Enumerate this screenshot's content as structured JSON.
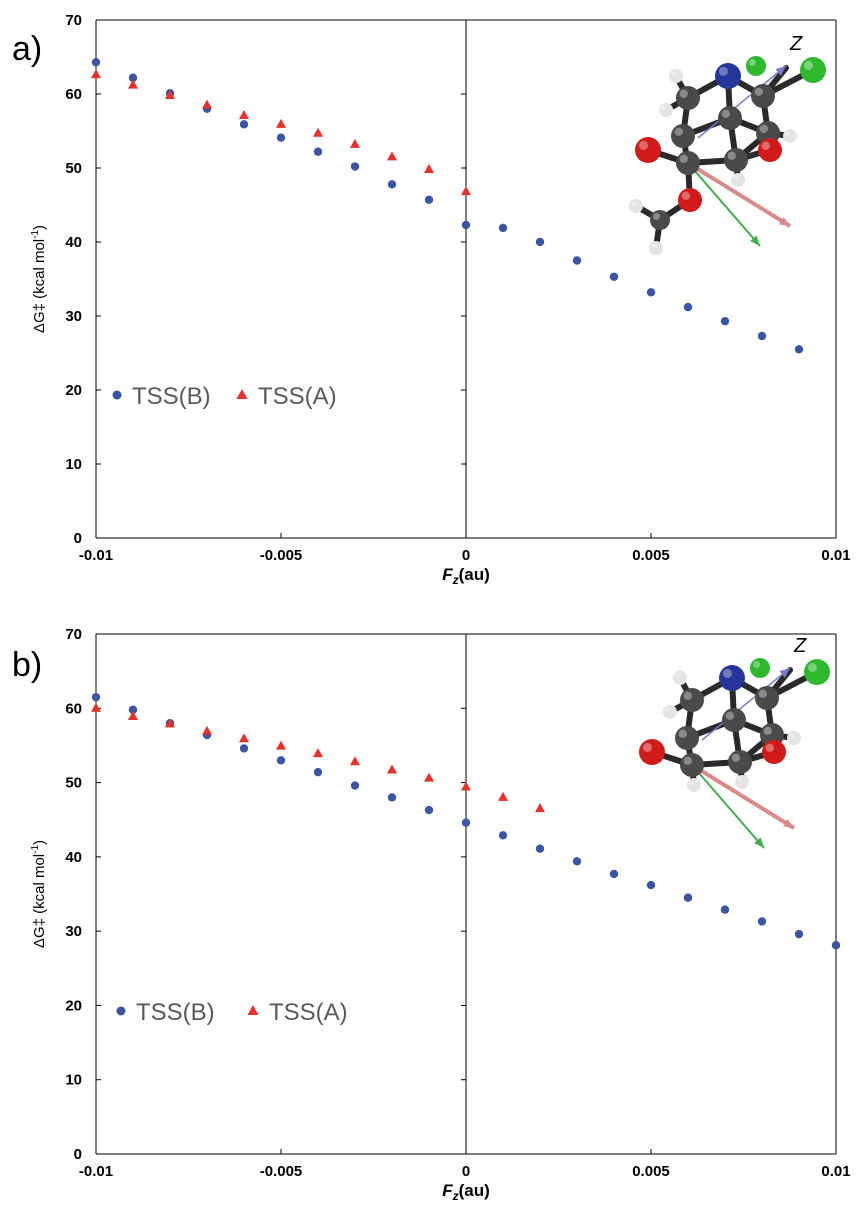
{
  "chart_data": [
    {
      "type": "scatter",
      "panel_label": "a)",
      "xlabel": {
        "main": "F",
        "sub": "z",
        "unit": "(au)"
      },
      "ylabel": {
        "main": "ΔG‡ (kcal mol",
        "sup": "-1",
        "end": ")"
      },
      "xlim": [
        -0.01,
        0.01
      ],
      "ylim": [
        0,
        70
      ],
      "xticks": [
        "-0.01",
        "-0.005",
        "0",
        "0.005",
        "0.01"
      ],
      "yticks": [
        "0",
        "10",
        "20",
        "30",
        "40",
        "50",
        "60",
        "70"
      ],
      "grid": false,
      "legend": "left",
      "series": [
        {
          "name": "TSS(B)",
          "marker": "circle",
          "color": "#3a55a4",
          "points": [
            [
              -0.01,
              64.3
            ],
            [
              -0.009,
              62.2
            ],
            [
              -0.008,
              60.1
            ],
            [
              -0.007,
              58.0
            ],
            [
              -0.006,
              55.9
            ],
            [
              -0.005,
              54.1
            ],
            [
              -0.004,
              52.2
            ],
            [
              -0.003,
              50.2
            ],
            [
              -0.002,
              47.8
            ],
            [
              -0.001,
              45.7
            ],
            [
              0.0,
              42.3
            ],
            [
              0.001,
              41.9
            ],
            [
              0.002,
              40.0
            ],
            [
              0.003,
              37.5
            ],
            [
              0.004,
              35.3
            ],
            [
              0.005,
              33.2
            ],
            [
              0.006,
              31.2
            ],
            [
              0.007,
              29.3
            ],
            [
              0.008,
              27.3
            ],
            [
              0.009,
              25.5
            ]
          ]
        },
        {
          "name": "TSS(A)",
          "marker": "triangle",
          "color": "#e8312a",
          "points": [
            [
              -0.01,
              62.6
            ],
            [
              -0.009,
              61.2
            ],
            [
              -0.008,
              59.8
            ],
            [
              -0.007,
              58.5
            ],
            [
              -0.006,
              57.1
            ],
            [
              -0.005,
              55.9
            ],
            [
              -0.004,
              54.7
            ],
            [
              -0.003,
              53.2
            ],
            [
              -0.002,
              51.5
            ],
            [
              -0.001,
              49.8
            ],
            [
              0.0,
              46.8
            ]
          ]
        }
      ]
    },
    {
      "type": "scatter",
      "panel_label": "b)",
      "xlabel": {
        "main": "F",
        "sub": "z",
        "unit": "(au)"
      },
      "ylabel": {
        "main": "ΔG‡ (kcal mol",
        "sup": "-1",
        "end": ")"
      },
      "xlim": [
        -0.01,
        0.01
      ],
      "ylim": [
        0,
        70
      ],
      "xticks": [
        "-0.01",
        "-0.005",
        "0",
        "0.005",
        "0.01"
      ],
      "yticks": [
        "0",
        "10",
        "20",
        "30",
        "40",
        "50",
        "60",
        "70"
      ],
      "grid": false,
      "legend": "left",
      "series": [
        {
          "name": "TSS(B)",
          "marker": "circle",
          "color": "#3a55a4",
          "points": [
            [
              -0.01,
              61.5
            ],
            [
              -0.009,
              59.8
            ],
            [
              -0.008,
              58.0
            ],
            [
              -0.007,
              56.4
            ],
            [
              -0.006,
              54.6
            ],
            [
              -0.005,
              53.0
            ],
            [
              -0.004,
              51.4
            ],
            [
              -0.003,
              49.6
            ],
            [
              -0.002,
              48.0
            ],
            [
              -0.001,
              46.3
            ],
            [
              0.0,
              44.6
            ],
            [
              0.001,
              42.9
            ],
            [
              0.002,
              41.1
            ],
            [
              0.003,
              39.4
            ],
            [
              0.004,
              37.7
            ],
            [
              0.005,
              36.2
            ],
            [
              0.006,
              34.5
            ],
            [
              0.007,
              32.9
            ],
            [
              0.008,
              31.3
            ],
            [
              0.009,
              29.6
            ],
            [
              0.01,
              28.1
            ]
          ]
        },
        {
          "name": "TSS(A)",
          "marker": "triangle",
          "color": "#e8312a",
          "points": [
            [
              -0.01,
              60.0
            ],
            [
              -0.009,
              58.9
            ],
            [
              -0.008,
              57.9
            ],
            [
              -0.007,
              56.9
            ],
            [
              -0.006,
              55.9
            ],
            [
              -0.005,
              54.9
            ],
            [
              -0.004,
              53.9
            ],
            [
              -0.003,
              52.8
            ],
            [
              -0.002,
              51.7
            ],
            [
              -0.001,
              50.6
            ],
            [
              0.0,
              49.4
            ],
            [
              0.001,
              48.0
            ],
            [
              0.002,
              46.5
            ]
          ]
        }
      ]
    }
  ],
  "inset": {
    "axis_label": "Z",
    "colors": {
      "carbon": "#4a4a4a",
      "hydrogen": "#e4e4e4",
      "nitrogen": "#25359a",
      "oxygen": "#d11a1a",
      "chlorine": "#2eb82e",
      "field_arrow": "#d98a8a",
      "dipole_arrow": "#3fae4a",
      "z_arrow": "#7a7acf"
    }
  }
}
